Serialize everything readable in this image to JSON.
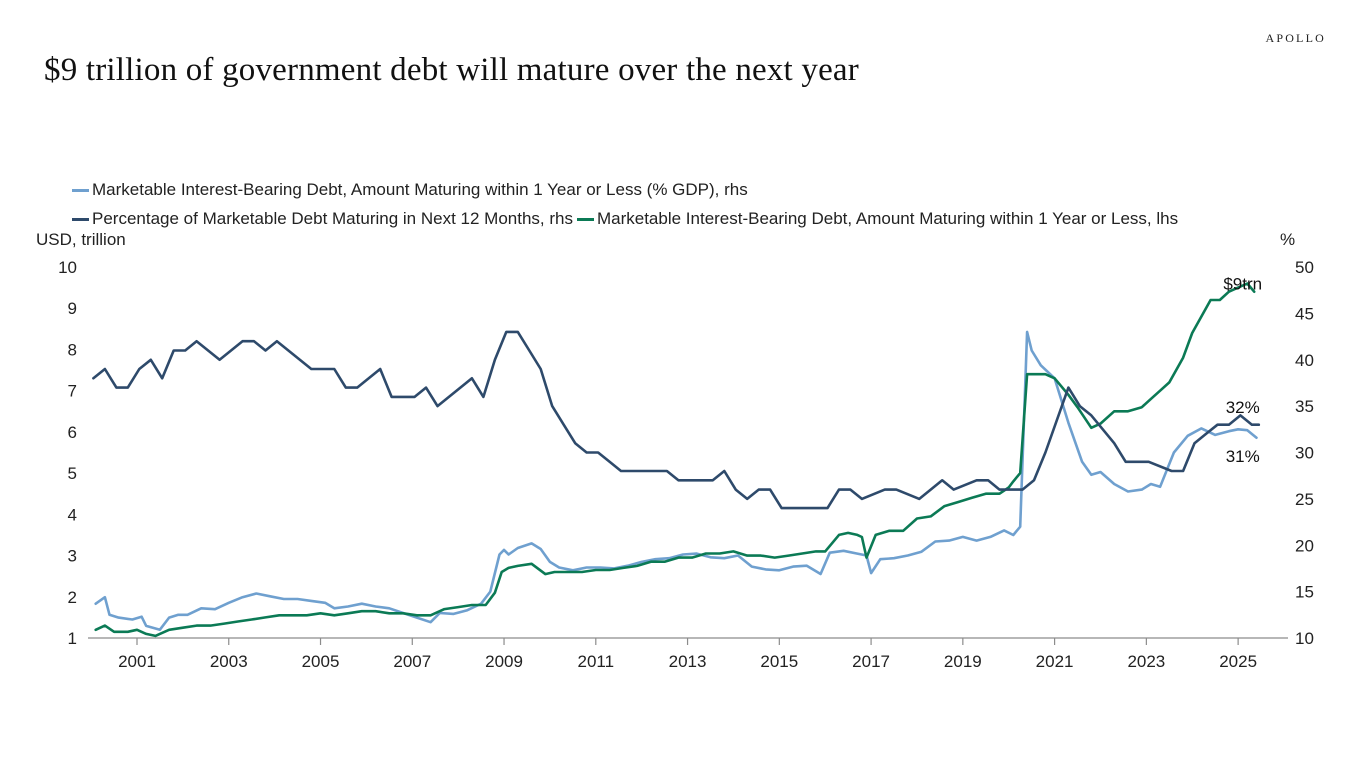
{
  "header": {
    "title": "$9 trillion of government debt will mature over the next year",
    "brand": "APOLLO"
  },
  "chart_data": {
    "type": "line",
    "title": "$9 trillion of government debt will mature over the next year",
    "ylabel_left": "USD, trillion",
    "ylabel_right": "%",
    "ylim_left": [
      1,
      10
    ],
    "ylim_right": [
      10,
      50
    ],
    "yticks_left": [
      "10",
      "9",
      "8",
      "7",
      "6",
      "5",
      "4",
      "3",
      "2",
      "1"
    ],
    "yticks_right": [
      "50",
      "45",
      "40",
      "35",
      "30",
      "25",
      "20",
      "15",
      "10"
    ],
    "xlim": [
      2000.0,
      2026.1
    ],
    "xticks": [
      "2001",
      "2003",
      "2005",
      "2007",
      "2009",
      "2011",
      "2013",
      "2015",
      "2017",
      "2019",
      "2021",
      "2023",
      "2025"
    ],
    "grid": false,
    "legend_position": "top",
    "legend": [
      {
        "label": "Marketable Interest-Bearing Debt, Amount Maturing within 1 Year or Less (% GDP), rhs",
        "color": "#6fa0cf"
      },
      {
        "label": "Percentage of Marketable Debt Maturing in Next 12 Months, rhs",
        "color": "#2e4a6b"
      },
      {
        "label": "Marketable Interest-Bearing Debt, Amount Maturing within 1 Year or Less, lhs",
        "color": "#0b7a55"
      }
    ],
    "annotations": [
      {
        "text": "$9trn",
        "series": "amount_lhs",
        "x": 2025.1,
        "y": 9.6
      },
      {
        "text": "32%",
        "series": "pct_marketable_rhs",
        "x": 2025.1,
        "y": 34.9
      },
      {
        "text": "31%",
        "series": "pct_gdp_rhs",
        "x": 2025.1,
        "y": 29.6
      }
    ],
    "series": [
      {
        "name": "Marketable Interest-Bearing Debt, Amount Maturing within 1 Year or Less (% GDP), rhs",
        "key": "pct_gdp_rhs",
        "axis": "right",
        "color": "#6fa0cf",
        "x": [
          2000.1,
          2000.3,
          2000.4,
          2000.6,
          2000.9,
          2001.1,
          2001.2,
          2001.5,
          2001.7,
          2001.9,
          2002.1,
          2002.4,
          2002.7,
          2003.0,
          2003.3,
          2003.6,
          2003.9,
          2004.2,
          2004.5,
          2004.8,
          2005.1,
          2005.3,
          2005.6,
          2005.9,
          2006.2,
          2006.5,
          2006.8,
          2007.1,
          2007.4,
          2007.6,
          2007.9,
          2008.2,
          2008.5,
          2008.7,
          2008.9,
          2009.0,
          2009.1,
          2009.3,
          2009.6,
          2009.8,
          2010.0,
          2010.2,
          2010.5,
          2010.8,
          2011.1,
          2011.4,
          2011.7,
          2012.0,
          2012.3,
          2012.6,
          2012.9,
          2013.2,
          2013.5,
          2013.8,
          2014.1,
          2014.4,
          2014.7,
          2015.0,
          2015.3,
          2015.6,
          2015.9,
          2016.1,
          2016.4,
          2016.7,
          2016.9,
          2017.0,
          2017.2,
          2017.5,
          2017.8,
          2018.1,
          2018.4,
          2018.7,
          2019.0,
          2019.3,
          2019.6,
          2019.9,
          2020.1,
          2020.25,
          2020.4,
          2020.5,
          2020.7,
          2021.0,
          2021.3,
          2021.6,
          2021.8,
          2022.0,
          2022.3,
          2022.6,
          2022.9,
          2023.1,
          2023.3,
          2023.6,
          2023.9,
          2024.2,
          2024.5,
          2024.8,
          2025.0,
          2025.2,
          2025.4
        ],
        "y": [
          13.7,
          14.4,
          12.5,
          12.2,
          12.0,
          12.3,
          11.3,
          10.9,
          12.2,
          12.5,
          12.5,
          13.2,
          13.1,
          13.8,
          14.4,
          14.8,
          14.5,
          14.2,
          14.2,
          14.0,
          13.8,
          13.2,
          13.4,
          13.7,
          13.4,
          13.2,
          12.7,
          12.2,
          11.7,
          12.7,
          12.6,
          13.0,
          13.7,
          15.0,
          19.0,
          19.5,
          19.0,
          19.7,
          20.2,
          19.6,
          18.2,
          17.6,
          17.3,
          17.6,
          17.6,
          17.5,
          17.8,
          18.2,
          18.5,
          18.6,
          19.0,
          19.1,
          18.7,
          18.6,
          18.9,
          17.7,
          17.4,
          17.3,
          17.7,
          17.8,
          16.9,
          19.2,
          19.4,
          19.1,
          18.9,
          17.0,
          18.5,
          18.6,
          18.9,
          19.3,
          20.4,
          20.5,
          20.9,
          20.5,
          20.9,
          21.6,
          21.1,
          22.0,
          43.0,
          41.0,
          39.4,
          38.0,
          33.2,
          29.0,
          27.6,
          27.9,
          26.6,
          25.8,
          26.0,
          26.6,
          26.3,
          30.0,
          31.8,
          32.6,
          31.9,
          32.3,
          32.5,
          32.4,
          31.6
        ]
      },
      {
        "name": "Percentage of Marketable Debt Maturing in Next 12 Months, rhs",
        "key": "pct_marketable_rhs",
        "axis": "right",
        "color": "#2e4a6b",
        "x": [
          2000.05,
          2000.3,
          2000.55,
          2000.8,
          2001.05,
          2001.3,
          2001.55,
          2001.8,
          2002.05,
          2002.3,
          2002.8,
          2003.3,
          2003.55,
          2003.8,
          2004.05,
          2004.8,
          2005.3,
          2005.55,
          2005.8,
          2006.3,
          2006.55,
          2006.8,
          2007.05,
          2007.3,
          2007.55,
          2008.3,
          2008.55,
          2008.8,
          2009.05,
          2009.3,
          2009.55,
          2009.8,
          2010.05,
          2010.3,
          2010.55,
          2010.8,
          2011.05,
          2011.3,
          2011.55,
          2011.8,
          2012.05,
          2012.55,
          2012.8,
          2013.05,
          2013.55,
          2013.8,
          2014.05,
          2014.3,
          2014.55,
          2014.8,
          2015.05,
          2016.05,
          2016.3,
          2016.55,
          2016.8,
          2017.3,
          2017.55,
          2018.05,
          2018.3,
          2018.55,
          2018.8,
          2019.3,
          2019.55,
          2019.8,
          2020.05,
          2020.3,
          2020.55,
          2020.8,
          2021.3,
          2021.55,
          2021.8,
          2022.3,
          2022.55,
          2022.8,
          2023.05,
          2023.55,
          2023.8,
          2024.05,
          2024.3,
          2024.55,
          2024.8,
          2025.05,
          2025.3,
          2025.45
        ],
        "y": [
          38,
          39,
          37,
          37,
          39,
          40,
          38,
          41,
          41,
          42,
          40,
          42,
          42,
          41,
          42,
          39,
          39,
          37,
          37,
          39,
          36,
          36,
          36,
          37,
          35,
          38,
          36,
          40,
          43,
          43,
          41,
          39,
          35,
          33,
          31,
          30,
          30,
          29,
          28,
          28,
          28,
          28,
          27,
          27,
          27,
          28,
          26,
          25,
          26,
          26,
          24,
          24,
          26,
          26,
          25,
          26,
          26,
          25,
          26,
          27,
          26,
          27,
          27,
          26,
          26,
          26,
          27,
          30,
          37,
          35,
          34,
          31,
          29,
          29,
          29,
          28,
          28,
          31,
          32,
          33,
          33,
          34,
          33,
          33
        ]
      },
      {
        "name": "Marketable Interest-Bearing Debt, Amount Maturing within 1 Year or Less, lhs",
        "key": "amount_lhs",
        "axis": "left",
        "color": "#0b7a55",
        "x": [
          2000.1,
          2000.3,
          2000.5,
          2000.8,
          2001.0,
          2001.2,
          2001.4,
          2001.7,
          2002.0,
          2002.3,
          2002.6,
          2002.9,
          2003.2,
          2003.5,
          2003.8,
          2004.1,
          2004.4,
          2004.7,
          2005.0,
          2005.3,
          2005.6,
          2005.9,
          2006.2,
          2006.5,
          2006.8,
          2007.1,
          2007.4,
          2007.7,
          2008.0,
          2008.3,
          2008.6,
          2008.8,
          2008.95,
          2009.1,
          2009.3,
          2009.6,
          2009.9,
          2010.1,
          2010.4,
          2010.7,
          2011.0,
          2011.3,
          2011.6,
          2011.9,
          2012.2,
          2012.5,
          2012.8,
          2013.1,
          2013.4,
          2013.7,
          2014.0,
          2014.3,
          2014.6,
          2014.9,
          2015.2,
          2015.5,
          2015.8,
          2016.0,
          2016.3,
          2016.5,
          2016.7,
          2016.8,
          2016.9,
          2017.1,
          2017.4,
          2017.7,
          2018.0,
          2018.3,
          2018.6,
          2018.9,
          2019.2,
          2019.5,
          2019.8,
          2020.0,
          2020.1,
          2020.25,
          2020.4,
          2020.55,
          2020.8,
          2021.0,
          2021.3,
          2021.5,
          2021.8,
          2022.0,
          2022.3,
          2022.6,
          2022.9,
          2023.1,
          2023.3,
          2023.5,
          2023.8,
          2024.0,
          2024.2,
          2024.4,
          2024.6,
          2024.8,
          2025.0,
          2025.2,
          2025.35
        ],
        "y": [
          1.2,
          1.3,
          1.15,
          1.15,
          1.2,
          1.1,
          1.05,
          1.2,
          1.25,
          1.3,
          1.3,
          1.35,
          1.4,
          1.45,
          1.5,
          1.55,
          1.55,
          1.55,
          1.6,
          1.55,
          1.6,
          1.65,
          1.65,
          1.6,
          1.6,
          1.55,
          1.55,
          1.7,
          1.75,
          1.8,
          1.8,
          2.1,
          2.6,
          2.7,
          2.75,
          2.8,
          2.55,
          2.6,
          2.6,
          2.6,
          2.65,
          2.65,
          2.7,
          2.75,
          2.85,
          2.85,
          2.95,
          2.95,
          3.05,
          3.05,
          3.1,
          3.0,
          3.0,
          2.95,
          3.0,
          3.05,
          3.1,
          3.1,
          3.5,
          3.55,
          3.5,
          3.45,
          2.95,
          3.5,
          3.6,
          3.6,
          3.9,
          3.95,
          4.2,
          4.3,
          4.4,
          4.5,
          4.5,
          4.65,
          4.8,
          5.0,
          7.4,
          7.4,
          7.4,
          7.3,
          6.9,
          6.6,
          6.1,
          6.2,
          6.5,
          6.5,
          6.6,
          6.8,
          7.0,
          7.2,
          7.8,
          8.4,
          8.8,
          9.2,
          9.2,
          9.4,
          9.5,
          9.6,
          9.4
        ]
      }
    ]
  }
}
